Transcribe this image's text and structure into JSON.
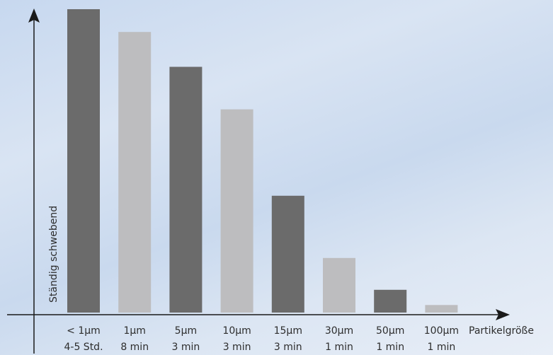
{
  "chart_data": {
    "type": "bar",
    "categories": [
      "< 1µm",
      "1µm",
      "5µm",
      "10µm",
      "15µm",
      "30µm",
      "50µm",
      "100µm"
    ],
    "settling_times": [
      "4-5 Std.",
      "8 min",
      "3 min",
      "3 min",
      "3 min",
      "1 min",
      "1 min",
      "1 min"
    ],
    "values": [
      100,
      92.5,
      81,
      67,
      38.5,
      18,
      7.5,
      2.5
    ],
    "bar_colors": [
      "#6b6b6b",
      "#bdbdbf",
      "#6b6b6b",
      "#bdbdbf",
      "#6b6b6b",
      "#bdbdbf",
      "#6b6b6b",
      "#bdbdbf"
    ],
    "xlabel": "Partikelgröße",
    "ylabel": "Ständig schwebend",
    "ylim": [
      0,
      100
    ],
    "grid": false,
    "title": ""
  }
}
